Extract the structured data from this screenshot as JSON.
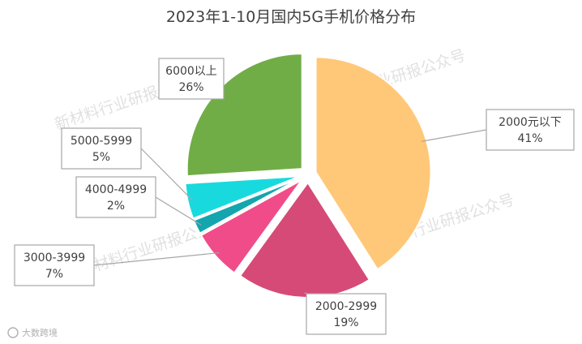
{
  "chart_data": {
    "type": "pie",
    "title": "2023年1-10月国内5G手机价格分布",
    "categories": [
      "2000元以下",
      "2000-2999",
      "3000-3999",
      "4000-4999",
      "5000-5999",
      "6000以上"
    ],
    "values": [
      41,
      19,
      7,
      2,
      5,
      26
    ],
    "unit": "%",
    "data_labels": [
      "41%",
      "19%",
      "7%",
      "2%",
      "5%",
      "26%"
    ],
    "colors": [
      "#ffc878",
      "#d64a78",
      "#f04c8a",
      "#13a6ae",
      "#18dade",
      "#71ad47"
    ],
    "legend": "none",
    "exploded": true
  },
  "watermark": {
    "text": "新材料行业研报公众号",
    "source_logo": "大数跨境"
  }
}
